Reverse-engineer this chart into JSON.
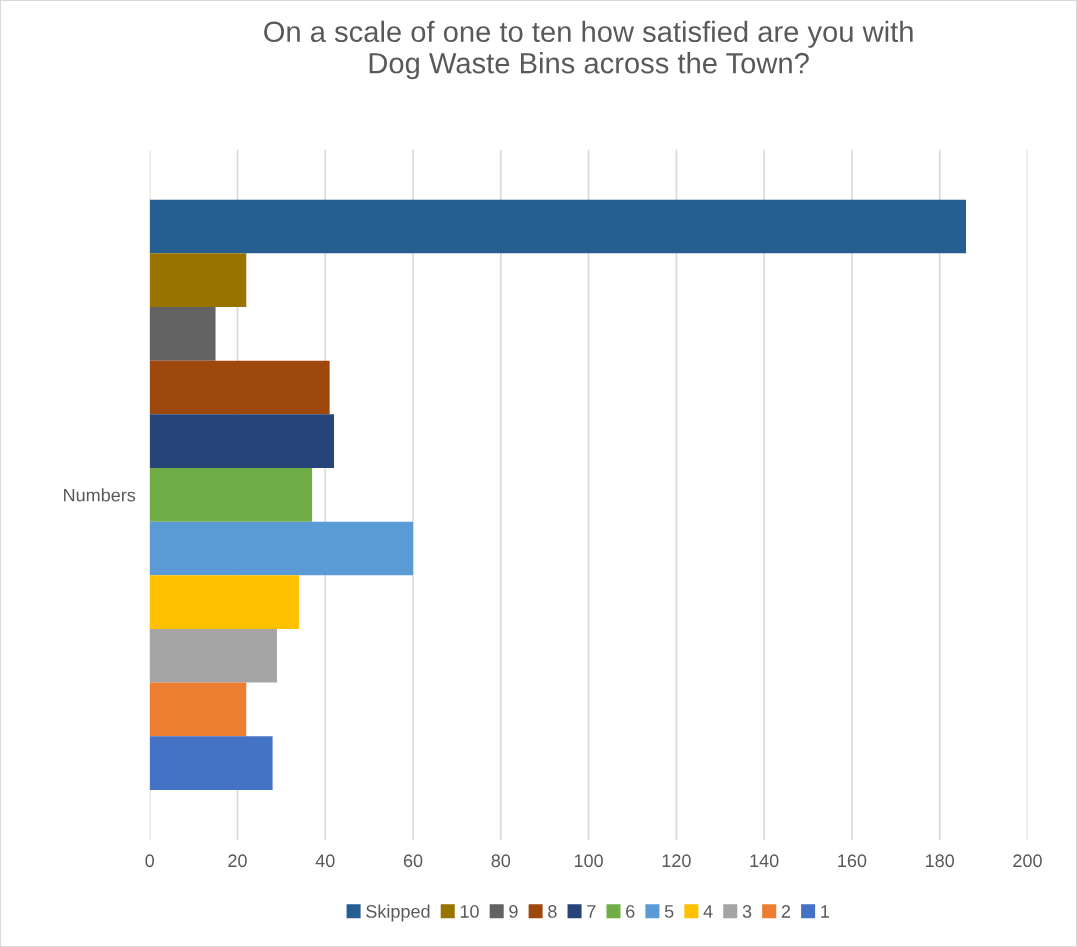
{
  "chart_data": {
    "type": "bar",
    "orientation": "horizontal",
    "title": "On a scale of one to ten how satisfied are you with\nDog Waste Bins across the Town?",
    "categories": [
      "Numbers"
    ],
    "series": [
      {
        "name": "Skipped",
        "color": "#255e91",
        "values": [
          186
        ]
      },
      {
        "name": "10",
        "color": "#997300",
        "values": [
          22
        ]
      },
      {
        "name": "9",
        "color": "#636363",
        "values": [
          15
        ]
      },
      {
        "name": "8",
        "color": "#9e480e",
        "values": [
          41
        ]
      },
      {
        "name": "7",
        "color": "#264478",
        "values": [
          42
        ]
      },
      {
        "name": "6",
        "color": "#70ad47",
        "values": [
          37
        ]
      },
      {
        "name": "5",
        "color": "#5b9bd5",
        "values": [
          60
        ]
      },
      {
        "name": "4",
        "color": "#ffc000",
        "values": [
          34
        ]
      },
      {
        "name": "3",
        "color": "#a5a5a5",
        "values": [
          29
        ]
      },
      {
        "name": "2",
        "color": "#ed7d31",
        "values": [
          22
        ]
      },
      {
        "name": "1",
        "color": "#4472c4",
        "values": [
          28
        ]
      }
    ],
    "xlim": [
      0,
      200
    ],
    "xticks": [
      0,
      20,
      40,
      60,
      80,
      100,
      120,
      140,
      160,
      180,
      200
    ],
    "grid": "x",
    "legend": "bottom"
  }
}
